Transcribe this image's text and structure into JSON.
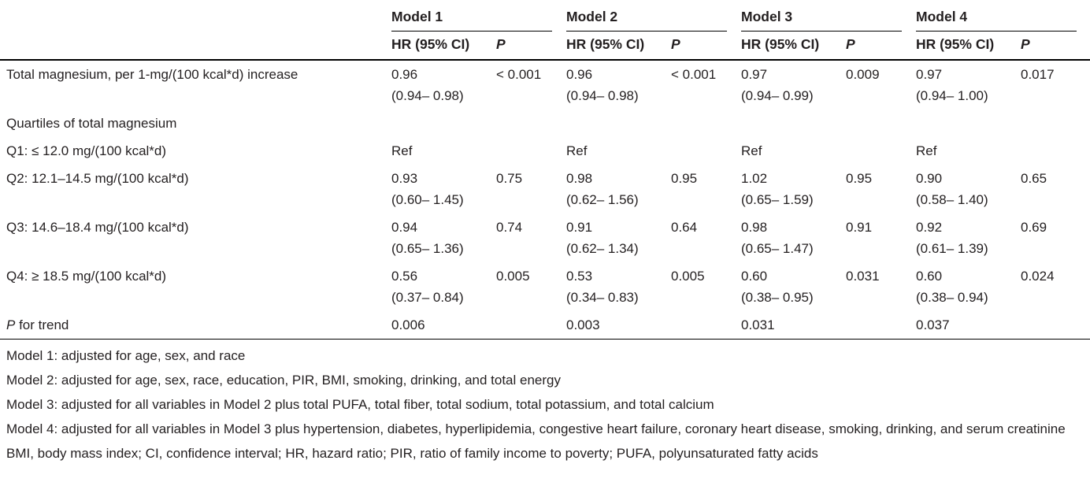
{
  "table": {
    "model_headers": [
      "Model 1",
      "Model 2",
      "Model 3",
      "Model 4"
    ],
    "col_hr": "HR (95% CI)",
    "col_p": "P",
    "rows": [
      {
        "label": "Total magnesium, per 1-mg/(100 kcal*d) increase",
        "m1": {
          "hr": "0.96",
          "ci": "(0.94– 0.98)",
          "p": "< 0.001"
        },
        "m2": {
          "hr": "0.96",
          "ci": "(0.94– 0.98)",
          "p": "< 0.001"
        },
        "m3": {
          "hr": "0.97",
          "ci": "(0.94– 0.99)",
          "p": "0.009"
        },
        "m4": {
          "hr": "0.97",
          "ci": "(0.94– 1.00)",
          "p": "0.017"
        }
      },
      {
        "label": "Quartiles of total magnesium"
      },
      {
        "label": "Q1: ≤ 12.0 mg/(100 kcal*d)",
        "m1": {
          "hr": "Ref"
        },
        "m2": {
          "hr": "Ref"
        },
        "m3": {
          "hr": "Ref"
        },
        "m4": {
          "hr": "Ref"
        }
      },
      {
        "label": "Q2: 12.1–14.5 mg/(100 kcal*d)",
        "m1": {
          "hr": "0.93",
          "ci": "(0.60– 1.45)",
          "p": "0.75"
        },
        "m2": {
          "hr": "0.98",
          "ci": "(0.62– 1.56)",
          "p": "0.95"
        },
        "m3": {
          "hr": "1.02",
          "ci": "(0.65– 1.59)",
          "p": "0.95"
        },
        "m4": {
          "hr": "0.90",
          "ci": "(0.58– 1.40)",
          "p": "0.65"
        }
      },
      {
        "label": "Q3: 14.6–18.4 mg/(100 kcal*d)",
        "m1": {
          "hr": "0.94",
          "ci": "(0.65– 1.36)",
          "p": "0.74"
        },
        "m2": {
          "hr": "0.91",
          "ci": "(0.62– 1.34)",
          "p": "0.64"
        },
        "m3": {
          "hr": "0.98",
          "ci": "(0.65– 1.47)",
          "p": "0.91"
        },
        "m4": {
          "hr": "0.92",
          "ci": "(0.61– 1.39)",
          "p": "0.69"
        }
      },
      {
        "label": "Q4: ≥ 18.5 mg/(100 kcal*d)",
        "m1": {
          "hr": "0.56",
          "ci": "(0.37– 0.84)",
          "p": "0.005"
        },
        "m2": {
          "hr": "0.53",
          "ci": "(0.34– 0.83)",
          "p": "0.005"
        },
        "m3": {
          "hr": "0.60",
          "ci": "(0.38– 0.95)",
          "p": "0.031"
        },
        "m4": {
          "hr": "0.60",
          "ci": "(0.38– 0.94)",
          "p": "0.024"
        }
      }
    ],
    "p_trend": {
      "label_italic": "P",
      "label_rest": " for trend",
      "values": [
        "0.006",
        "0.003",
        "0.031",
        "0.037"
      ]
    }
  },
  "footnotes": [
    "Model 1: adjusted for age, sex, and race",
    "Model 2: adjusted for age, sex, race, education, PIR, BMI, smoking, drinking, and total energy",
    "Model 3: adjusted for all variables in Model 2 plus total PUFA, total fiber, total sodium, total potassium, and total calcium",
    "Model 4: adjusted for all variables in Model 3 plus hypertension, diabetes, hyperlipidemia, congestive heart failure, coronary heart disease, smoking, drinking, and serum creatinine",
    "BMI, body mass index; CI, confidence interval; HR, hazard ratio; PIR, ratio of family income to poverty; PUFA, polyunsaturated fatty acids"
  ]
}
